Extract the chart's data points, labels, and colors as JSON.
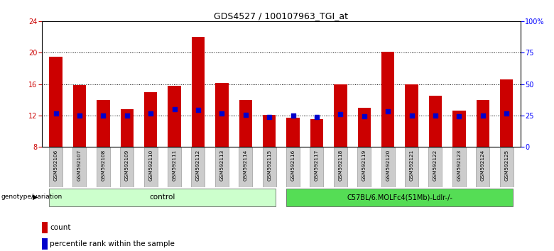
{
  "title": "GDS4527 / 100107963_TGI_at",
  "samples": [
    "GSM592106",
    "GSM592107",
    "GSM592108",
    "GSM592109",
    "GSM592110",
    "GSM592111",
    "GSM592112",
    "GSM592113",
    "GSM592114",
    "GSM592115",
    "GSM592116",
    "GSM592117",
    "GSM592118",
    "GSM592119",
    "GSM592120",
    "GSM592121",
    "GSM592122",
    "GSM592123",
    "GSM592124",
    "GSM592125"
  ],
  "counts": [
    19.5,
    15.9,
    14.0,
    12.8,
    15.0,
    15.8,
    22.0,
    16.1,
    14.0,
    12.1,
    11.7,
    11.5,
    16.0,
    13.0,
    20.1,
    16.0,
    14.5,
    12.6,
    14.0,
    16.6
  ],
  "percentile_ranks": [
    12.3,
    12.0,
    12.0,
    12.0,
    12.3,
    12.8,
    12.7,
    12.3,
    12.1,
    11.8,
    12.0,
    11.8,
    12.2,
    11.9,
    12.5,
    12.0,
    12.0,
    11.9,
    12.0,
    12.3
  ],
  "groups": [
    "control",
    "control",
    "control",
    "control",
    "control",
    "control",
    "control",
    "control",
    "control",
    "control",
    "C57BL/6.MOLFc4(51Mb)-Ldlr-/-",
    "C57BL/6.MOLFc4(51Mb)-Ldlr-/-",
    "C57BL/6.MOLFc4(51Mb)-Ldlr-/-",
    "C57BL/6.MOLFc4(51Mb)-Ldlr-/-",
    "C57BL/6.MOLFc4(51Mb)-Ldlr-/-",
    "C57BL/6.MOLFc4(51Mb)-Ldlr-/-",
    "C57BL/6.MOLFc4(51Mb)-Ldlr-/-",
    "C57BL/6.MOLFc4(51Mb)-Ldlr-/-",
    "C57BL/6.MOLFc4(51Mb)-Ldlr-/-",
    "C57BL/6.MOLFc4(51Mb)-Ldlr-/-"
  ],
  "ylim": [
    8,
    24
  ],
  "yticks_left": [
    8,
    12,
    16,
    20,
    24
  ],
  "yticks_right": [
    0,
    25,
    50,
    75,
    100
  ],
  "bar_color": "#cc0000",
  "pct_color": "#0000cc",
  "bar_width": 0.55,
  "grid_color": "#000000",
  "control_color": "#ccffcc",
  "mutation_color": "#55dd55",
  "sample_label_bg": "#cccccc",
  "title_fontsize": 9,
  "tick_fontsize": 7,
  "legend_fontsize": 7.5
}
